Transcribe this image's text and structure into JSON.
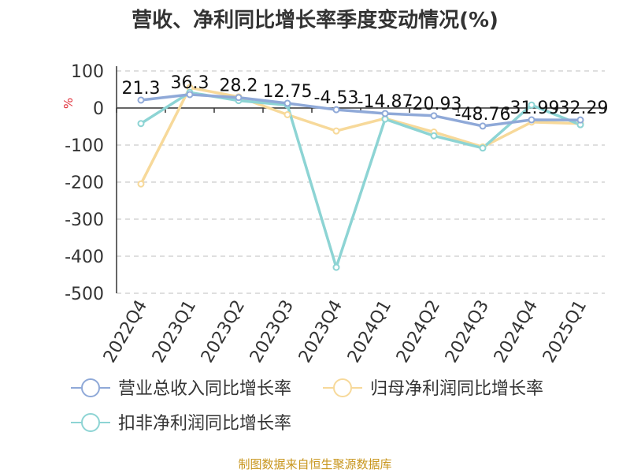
{
  "chart_data": {
    "type": "line",
    "title": "营收、净利同比增长率季度变动情况(%)",
    "ylabel": "%",
    "xlabel": "",
    "ylim": [
      -500,
      100
    ],
    "yticks": [
      100,
      0,
      -100,
      -200,
      -300,
      -400,
      -500
    ],
    "grid": true,
    "legend_position": "bottom",
    "categories": [
      "2022Q4",
      "2023Q1",
      "2023Q2",
      "2023Q3",
      "2023Q4",
      "2024Q1",
      "2024Q2",
      "2024Q3",
      "2024Q4",
      "2025Q1"
    ],
    "series": [
      {
        "name": "营业总收入同比增长率",
        "color": "#8fa9d8",
        "values": [
          21.3,
          36.3,
          28.2,
          12.75,
          -4.53,
          -14.87,
          -20.93,
          -48.76,
          -31.99,
          -32.29
        ],
        "labels": [
          "21.3",
          "36.3",
          "28.2",
          "12.75",
          "-4.53",
          "-14.87",
          "-20.93",
          "-48.76",
          "-31.99",
          "-32.29"
        ]
      },
      {
        "name": "归母净利润同比增长率",
        "color": "#f7d99a",
        "values": [
          -205,
          55,
          30,
          -18,
          -62,
          -28,
          -65,
          -105,
          -38,
          -42
        ]
      },
      {
        "name": "扣非净利润同比增长率",
        "color": "#8dd4d4",
        "values": [
          -42,
          42,
          20,
          8,
          -430,
          -30,
          -75,
          -108,
          8,
          -45
        ]
      }
    ]
  },
  "source": "制图数据来自恒生聚源数据库"
}
